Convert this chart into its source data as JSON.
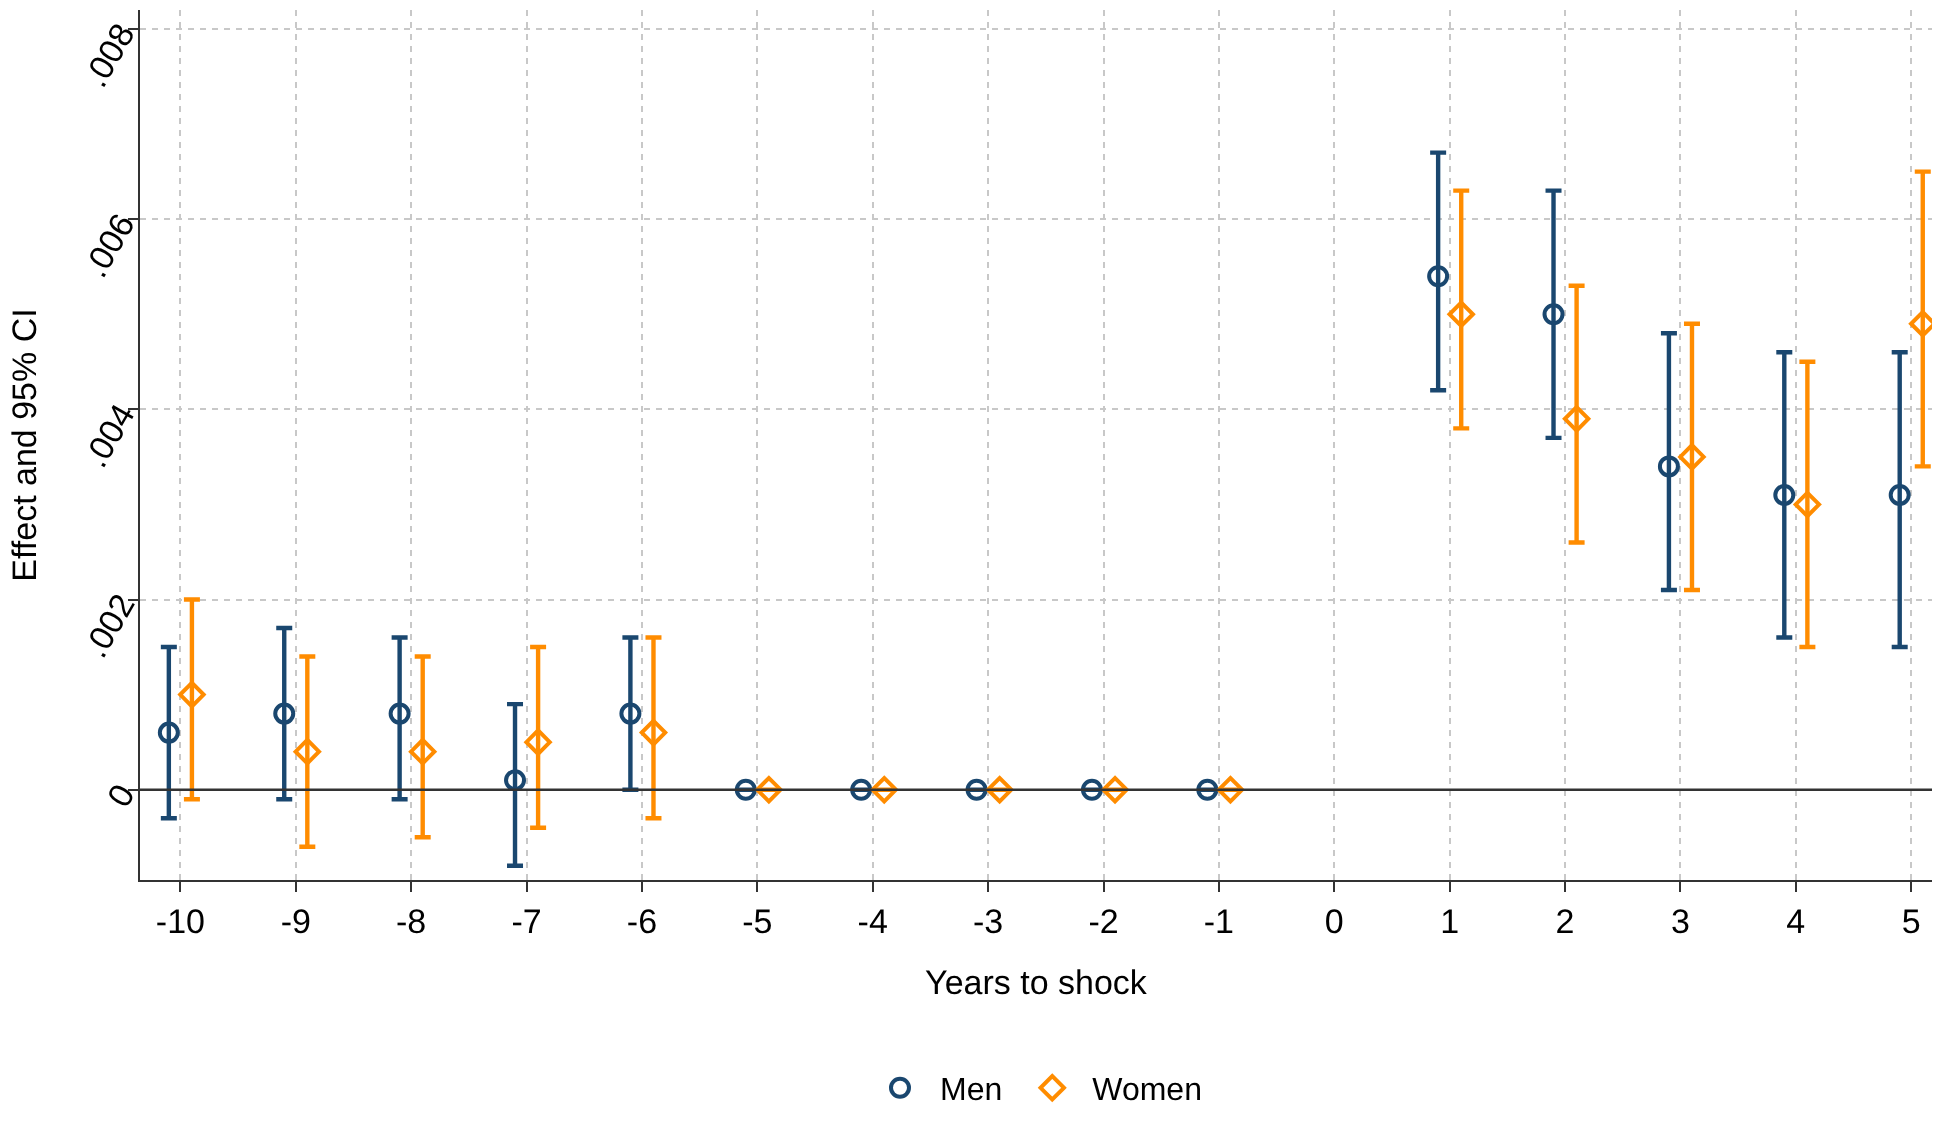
{
  "chart_data": {
    "type": "scatter",
    "xlabel": "Years to shock",
    "ylabel": "Effect and 95% CI",
    "series": [
      {
        "name": "Men",
        "color": "#1a476f",
        "marker": "circle",
        "x": [
          -10.1,
          -9.1,
          -8.1,
          -7.1,
          -6.1,
          -5.1,
          -4.1,
          -3.1,
          -2.1,
          -1.1,
          0.9,
          1.9,
          2.9,
          3.9,
          4.9
        ],
        "values": [
          0.0006,
          0.0008,
          0.0008,
          0.0001,
          0.0008,
          0,
          0,
          0,
          0,
          0,
          0.0054,
          0.005,
          0.0034,
          0.0031,
          0.0031
        ],
        "errors": [
          [
            -0.0003,
            0.0015
          ],
          [
            -0.0001,
            0.0017
          ],
          [
            -0.0001,
            0.0016
          ],
          [
            -0.0008,
            0.0009
          ],
          [
            0,
            0.0016
          ],
          null,
          null,
          null,
          null,
          null,
          [
            0.0042,
            0.0067
          ],
          [
            0.0037,
            0.0063
          ],
          [
            0.0021,
            0.0048
          ],
          [
            0.0016,
            0.0046
          ],
          [
            0.0015,
            0.0046
          ]
        ]
      },
      {
        "name": "Women",
        "color": "#ff8c00",
        "marker": "diamond",
        "x": [
          -9.9,
          -8.9,
          -7.9,
          -6.9,
          -5.9,
          -4.9,
          -3.9,
          -2.9,
          -1.9,
          -0.9,
          1.1,
          2.1,
          3.1,
          4.1,
          5.1
        ],
        "values": [
          0.001,
          0.0004,
          0.0004,
          0.0005,
          0.0006,
          0,
          0,
          0,
          0,
          0,
          0.005,
          0.0039,
          0.0035,
          0.003,
          0.0049
        ],
        "errors": [
          [
            -0.0001,
            0.002
          ],
          [
            -0.0006,
            0.0014
          ],
          [
            -0.0005,
            0.0014
          ],
          [
            -0.0004,
            0.0015
          ],
          [
            -0.0003,
            0.0016
          ],
          null,
          null,
          null,
          null,
          null,
          [
            0.0038,
            0.0063
          ],
          [
            0.0026,
            0.0053
          ],
          [
            0.0021,
            0.0049
          ],
          [
            0.0015,
            0.0045
          ],
          [
            0.0034,
            0.0065
          ]
        ]
      }
    ],
    "xlim": [
      -10.35,
      5.18
    ],
    "xticks": [
      -10,
      -9,
      -8,
      -7,
      -6,
      -5,
      -4,
      -3,
      -2,
      -1,
      0,
      1,
      2,
      3,
      4,
      5
    ],
    "ylim": [
      -0.00095,
      0.0082
    ],
    "yticks": [
      {
        "value": 0,
        "label": "0"
      },
      {
        "value": 0.002,
        "label": ".002"
      },
      {
        "value": 0.004,
        "label": ".004"
      },
      {
        "value": 0.006,
        "label": ".006"
      },
      {
        "value": 0.008,
        "label": ".008"
      }
    ],
    "ref_lines": [
      {
        "axis": "y",
        "value": 0,
        "label": null,
        "color": "#333333"
      }
    ],
    "grid": true,
    "legend": "bottom"
  }
}
